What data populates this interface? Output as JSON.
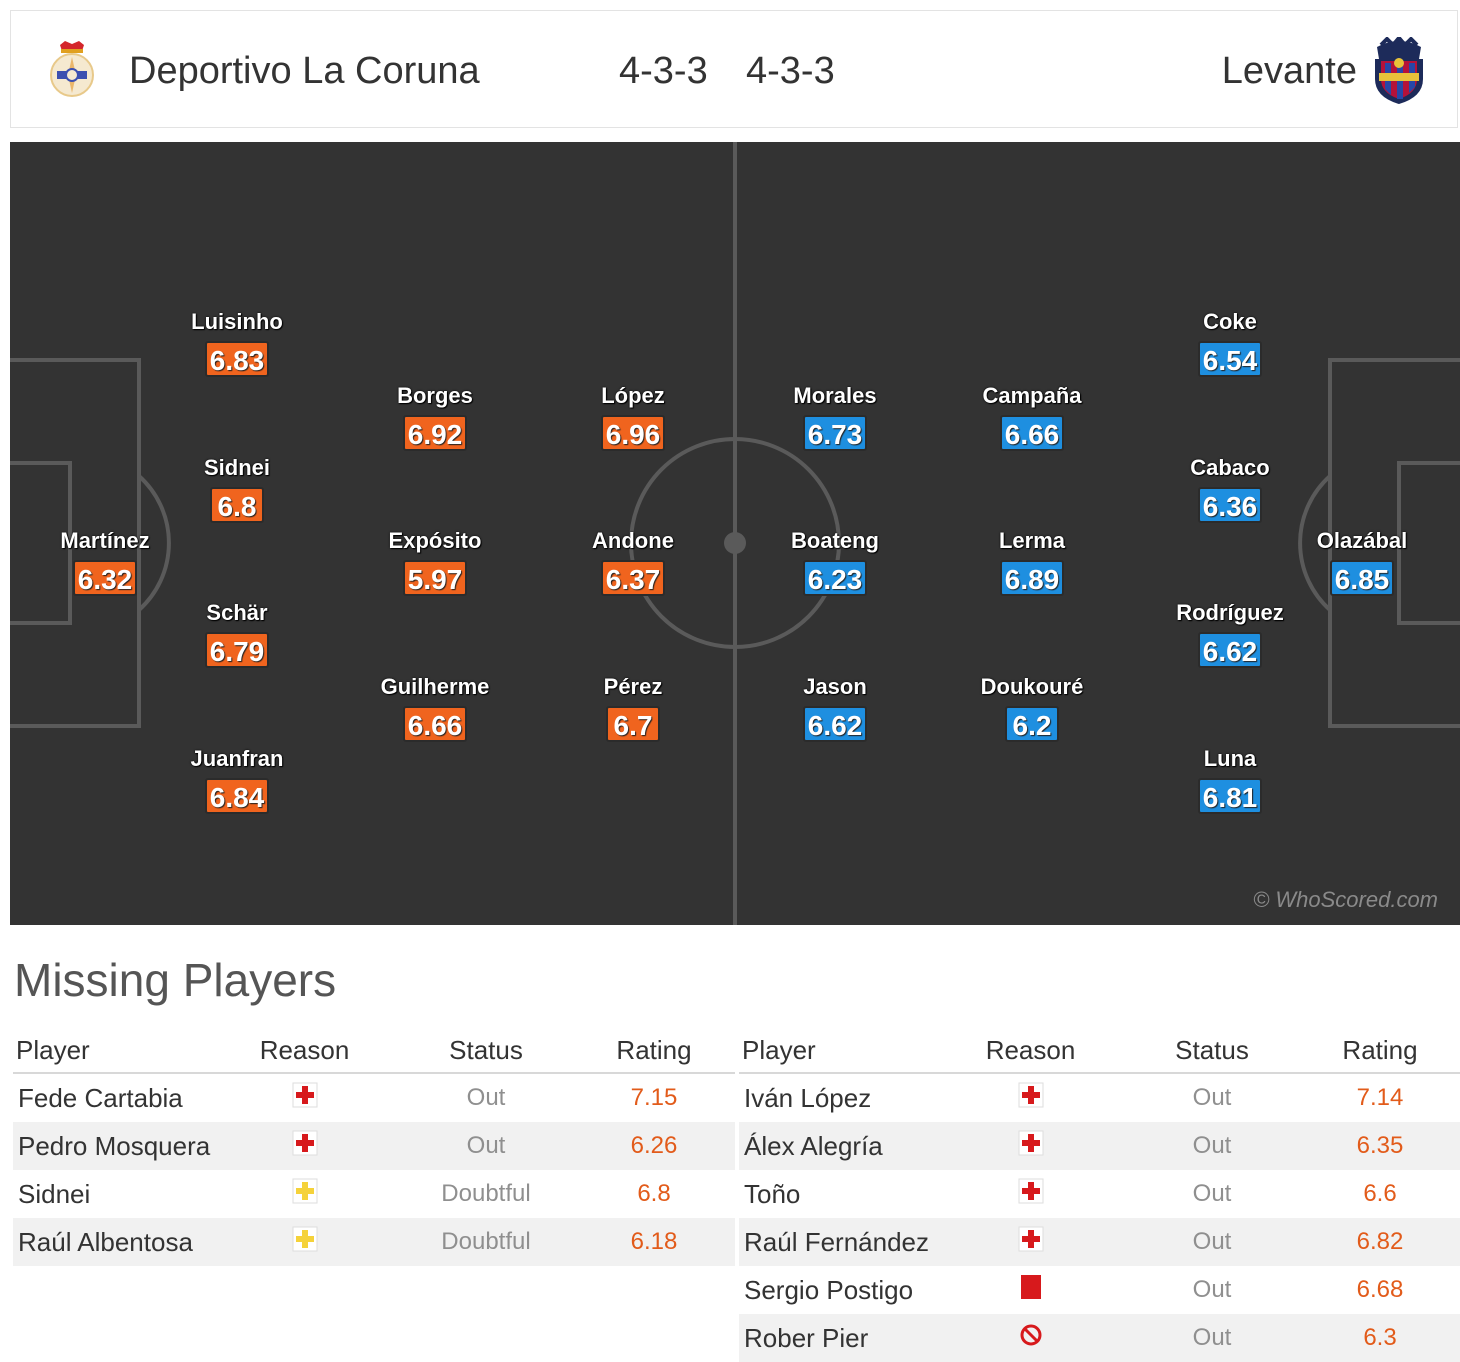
{
  "header": {
    "home_team": "Deportivo La Coruna",
    "home_formation": "4-3-3",
    "away_formation": "4-3-3",
    "away_team": "Levante"
  },
  "colors": {
    "pitch": "#333333",
    "home_rating_bg": "#f0641e",
    "away_rating_bg": "#1e8fe0",
    "missing_rating": "#e25b1a"
  },
  "pitch": {
    "watermark": "© WhoScored.com",
    "home_players": [
      {
        "name": "Martínez",
        "rating": "6.32"
      },
      {
        "name": "Luisinho",
        "rating": "6.83"
      },
      {
        "name": "Sidnei",
        "rating": "6.8"
      },
      {
        "name": "Schär",
        "rating": "6.79"
      },
      {
        "name": "Juanfran",
        "rating": "6.84"
      },
      {
        "name": "Borges",
        "rating": "6.92"
      },
      {
        "name": "Expósito",
        "rating": "5.97"
      },
      {
        "name": "Guilherme",
        "rating": "6.66"
      },
      {
        "name": "López",
        "rating": "6.96"
      },
      {
        "name": "Andone",
        "rating": "6.37"
      },
      {
        "name": "Pérez",
        "rating": "6.7"
      }
    ],
    "away_players": [
      {
        "name": "Morales",
        "rating": "6.73"
      },
      {
        "name": "Boateng",
        "rating": "6.23"
      },
      {
        "name": "Jason",
        "rating": "6.62"
      },
      {
        "name": "Campaña",
        "rating": "6.66"
      },
      {
        "name": "Lerma",
        "rating": "6.89"
      },
      {
        "name": "Doukouré",
        "rating": "6.2"
      },
      {
        "name": "Coke",
        "rating": "6.54"
      },
      {
        "name": "Cabaco",
        "rating": "6.36"
      },
      {
        "name": "Rodríguez",
        "rating": "6.62"
      },
      {
        "name": "Luna",
        "rating": "6.81"
      },
      {
        "name": "Olazábal",
        "rating": "6.85"
      }
    ]
  },
  "missing": {
    "title": "Missing Players",
    "columns": [
      "Player",
      "Reason",
      "Status",
      "Rating"
    ],
    "home": [
      {
        "player": "Fede Cartabia",
        "reason_icon": "injury-icon",
        "status": "Out",
        "rating": "7.15"
      },
      {
        "player": "Pedro Mosquera",
        "reason_icon": "injury-icon",
        "status": "Out",
        "rating": "6.26"
      },
      {
        "player": "Sidnei",
        "reason_icon": "doubtful-injury-icon",
        "status": "Doubtful",
        "rating": "6.8"
      },
      {
        "player": "Raúl Albentosa",
        "reason_icon": "doubtful-injury-icon",
        "status": "Doubtful",
        "rating": "6.18"
      }
    ],
    "away": [
      {
        "player": "Iván López",
        "reason_icon": "injury-icon",
        "status": "Out",
        "rating": "7.14"
      },
      {
        "player": "Álex Alegría",
        "reason_icon": "injury-icon",
        "status": "Out",
        "rating": "6.35"
      },
      {
        "player": "Toño",
        "reason_icon": "injury-icon",
        "status": "Out",
        "rating": "6.6"
      },
      {
        "player": "Raúl Fernández",
        "reason_icon": "injury-icon",
        "status": "Out",
        "rating": "6.82"
      },
      {
        "player": "Sergio Postigo",
        "reason_icon": "red-card-icon",
        "status": "Out",
        "rating": "6.68"
      },
      {
        "player": "Rober Pier",
        "reason_icon": "other-icon",
        "status": "Out",
        "rating": "6.3"
      }
    ]
  }
}
